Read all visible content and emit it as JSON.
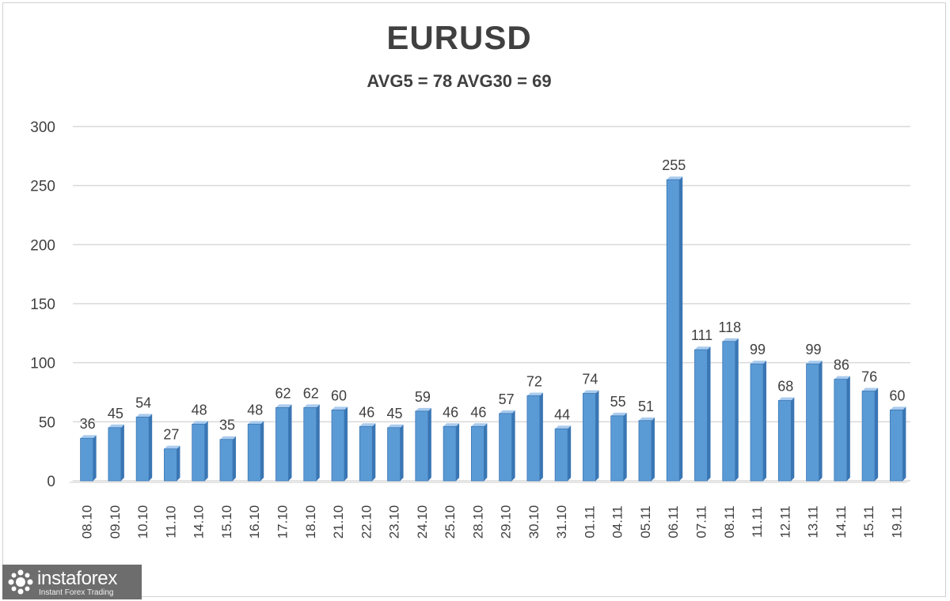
{
  "chart_data": {
    "type": "bar",
    "title": "EURUSD",
    "subtitle": "AVG5 = 78 AVG30 = 69",
    "categories": [
      "08.10",
      "09.10",
      "10.10",
      "11.10",
      "14.10",
      "15.10",
      "16.10",
      "17.10",
      "18.10",
      "21.10",
      "22.10",
      "23.10",
      "24.10",
      "25.10",
      "28.10",
      "29.10",
      "30.10",
      "31.10",
      "01.11",
      "04.11",
      "05.11",
      "06.11",
      "07.11",
      "08.11",
      "11.11",
      "12.11",
      "13.11",
      "14.11",
      "15.11",
      "19.11"
    ],
    "values": [
      36,
      45,
      54,
      27,
      48,
      35,
      48,
      62,
      62,
      60,
      46,
      45,
      59,
      46,
      46,
      57,
      72,
      44,
      74,
      55,
      51,
      255,
      111,
      118,
      99,
      68,
      99,
      86,
      76,
      60
    ],
    "yticks": [
      0,
      50,
      100,
      150,
      200,
      250,
      300
    ],
    "ylim": [
      0,
      300
    ],
    "grid": true,
    "bar_color": "#5b9bd5",
    "bar_dark": "#3a76b4",
    "bar_light": "#a9cbee"
  },
  "watermark": {
    "name": "instaforex",
    "tagline": "Instant Forex Trading",
    "icon": "instaforex-logo-icon"
  }
}
